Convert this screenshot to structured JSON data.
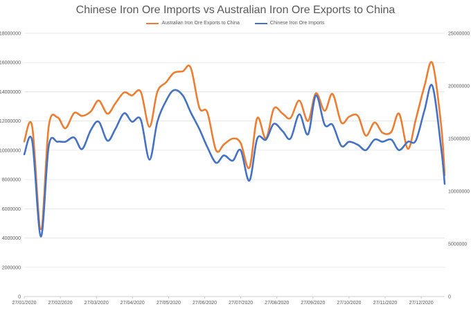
{
  "chart_data": {
    "type": "line",
    "title": "Chinese Iron Ore Imports vs Australian Iron Ore Exports to China",
    "xlabel": "",
    "ylabel": "",
    "x_tick_labels": [
      "27/01/2020",
      "27/02/2020",
      "27/03/2020",
      "27/04/2020",
      "27/05/2020",
      "27/06/2020",
      "27/07/2020",
      "27/08/2020",
      "27/09/2020",
      "27/10/2020",
      "27/11/2020",
      "27/12/2020"
    ],
    "x_range": [
      0,
      48
    ],
    "ylim_left": [
      0,
      18000000
    ],
    "y_ticks_left": [
      "0",
      "2000000",
      "4000000",
      "6000000",
      "8000000",
      "10000000",
      "12000000",
      "14000000",
      "16000000",
      "18000000"
    ],
    "ylim_right": [
      0,
      25000000
    ],
    "y_ticks_right": [
      "0",
      "5000000",
      "10000000",
      "15000000",
      "20000000",
      "25000000"
    ],
    "grid": "horizontal",
    "legend_position": "top-center",
    "series": [
      {
        "name": "Australian Iron Ore Exports to China",
        "axis": "left",
        "color": "#ED7D31",
        "x": [
          0,
          0.9,
          1.9,
          2.8,
          3.8,
          4.7,
          5.7,
          6.6,
          7.6,
          8.5,
          9.5,
          10.4,
          11.4,
          12.3,
          13.3,
          14.3,
          15.2,
          16.2,
          17.1,
          18.1,
          19.0,
          20.0,
          20.9,
          21.9,
          22.8,
          23.8,
          24.7,
          25.7,
          26.6,
          27.6,
          28.5,
          29.5,
          30.4,
          31.4,
          32.4,
          33.3,
          34.3,
          35.2,
          36.2,
          37.1,
          38.1,
          39.0,
          40.0,
          40.9,
          41.9,
          42.8,
          43.8,
          44.7,
          45.7,
          46.6,
          47.6,
          48.0
        ],
        "values": [
          10600000,
          11650000,
          4600000,
          11650000,
          12250000,
          11500000,
          12550000,
          12350000,
          12650000,
          13400000,
          12500000,
          13200000,
          13950000,
          13750000,
          14000000,
          11600000,
          14000000,
          14650000,
          15300000,
          15400000,
          15650000,
          12900000,
          12600000,
          10000000,
          10400000,
          10800000,
          10500000,
          8800000,
          12200000,
          10800000,
          12850000,
          12500000,
          12200000,
          13400000,
          12000000,
          13900000,
          12700000,
          13850000,
          11900000,
          12300000,
          12350000,
          11000000,
          11900000,
          11200000,
          11250000,
          12500000,
          10100000,
          12100000,
          14400000,
          15950000,
          11700000,
          8300000
        ]
      },
      {
        "name": "Chinese Iron Ore Imports",
        "axis": "right",
        "color": "#4472C4",
        "x": [
          0,
          0.9,
          1.9,
          2.8,
          3.8,
          4.7,
          5.7,
          6.6,
          7.6,
          8.5,
          9.5,
          10.4,
          11.4,
          12.3,
          13.3,
          14.3,
          15.2,
          16.2,
          17.1,
          18.1,
          19.0,
          20.0,
          20.9,
          21.9,
          22.8,
          23.8,
          24.7,
          25.7,
          26.6,
          27.6,
          28.5,
          29.5,
          30.4,
          31.4,
          32.4,
          33.3,
          34.3,
          35.2,
          36.2,
          37.1,
          38.1,
          39.0,
          40.0,
          40.9,
          41.9,
          42.8,
          43.8,
          44.7,
          45.7,
          46.6,
          47.6,
          48.0
        ],
        "values": [
          13500000,
          14800000,
          5700000,
          14300000,
          14700000,
          14700000,
          15100000,
          14000000,
          15800000,
          16600000,
          14800000,
          15900000,
          17400000,
          16600000,
          16800000,
          13000000,
          16600000,
          18600000,
          19600000,
          19100000,
          17500000,
          15900000,
          14200000,
          12700000,
          13400000,
          12900000,
          13900000,
          11000000,
          15000000,
          14900000,
          16400000,
          15700000,
          15000000,
          17300000,
          15400000,
          19100000,
          16300000,
          16300000,
          14300000,
          14700000,
          14400000,
          13900000,
          14900000,
          14700000,
          14900000,
          13900000,
          14700000,
          14800000,
          17700000,
          20000000,
          14100000,
          10700000
        ]
      }
    ]
  }
}
